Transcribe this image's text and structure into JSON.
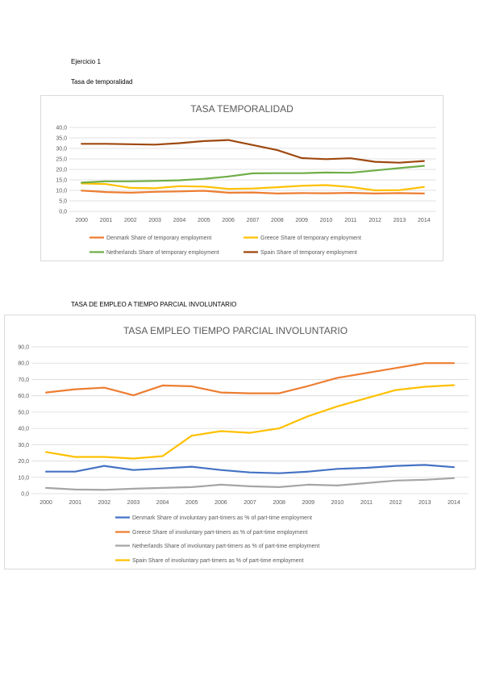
{
  "document": {
    "exercise_title": "Ejercicio 1",
    "section1_title": "Tasa de temporalidad",
    "section2_title": "TASA DE EMPLEO A TIEMPO PARCIAL INVOLUNTARIO"
  },
  "chart_data": [
    {
      "type": "line",
      "title": "TASA TEMPORALIDAD",
      "xlabel": "",
      "ylabel": "",
      "x": [
        "2000",
        "2001",
        "2002",
        "2003",
        "2004",
        "2005",
        "2006",
        "2007",
        "2008",
        "2009",
        "2010",
        "2011",
        "2012",
        "2013",
        "2014"
      ],
      "yticks": [
        "0,0",
        "5,0",
        "10,0",
        "15,0",
        "20,0",
        "25,0",
        "30,0",
        "35,0",
        "40,0"
      ],
      "ylim": [
        0,
        40
      ],
      "grid": true,
      "legend_position": "bottom",
      "series": [
        {
          "name": "Denmark Share of temporary employment",
          "color": "#ed7d31",
          "values": [
            9.9,
            9.2,
            8.9,
            9.3,
            9.5,
            9.8,
            8.9,
            9.0,
            8.5,
            8.7,
            8.6,
            8.8,
            8.5,
            8.7,
            8.5
          ]
        },
        {
          "name": "Greece Share of temporary employment",
          "color": "#ffc000",
          "values": [
            13.3,
            13.0,
            11.2,
            11.0,
            12.0,
            11.8,
            10.7,
            10.9,
            11.5,
            12.2,
            12.5,
            11.6,
            10.0,
            10.1,
            11.6
          ]
        },
        {
          "name": "Netherlands Share of temporary employment",
          "color": "#70ad47",
          "values": [
            13.7,
            14.3,
            14.3,
            14.5,
            14.8,
            15.5,
            16.6,
            18.1,
            18.2,
            18.2,
            18.5,
            18.4,
            19.5,
            20.6,
            21.7
          ]
        },
        {
          "name": "Spain Share of temporary employment",
          "color": "#9e480e",
          "values": [
            32.2,
            32.2,
            32.0,
            31.8,
            32.5,
            33.5,
            34.0,
            31.6,
            29.2,
            25.4,
            24.9,
            25.3,
            23.6,
            23.2,
            24.0
          ]
        }
      ]
    },
    {
      "type": "line",
      "title": "TASA EMPLEO TIEMPO PARCIAL INVOLUNTARIO",
      "xlabel": "",
      "ylabel": "",
      "x": [
        "2000",
        "2001",
        "2002",
        "2003",
        "2004",
        "2005",
        "2006",
        "2007",
        "2008",
        "2009",
        "2010",
        "2011",
        "2012",
        "2013",
        "2014"
      ],
      "yticks": [
        "0,0",
        "10,0",
        "20,0",
        "30,0",
        "40,0",
        "50,0",
        "60,0",
        "70,0",
        "80,0",
        "90,0"
      ],
      "ylim": [
        0,
        90
      ],
      "grid": true,
      "legend_position": "bottom",
      "series": [
        {
          "name": "Denmark Share of involuntary part-timers as % of part-time employment",
          "color": "#4472c4",
          "values": [
            13.5,
            13.5,
            17.0,
            14.5,
            15.5,
            16.5,
            14.5,
            13.0,
            12.5,
            13.5,
            15.2,
            15.8,
            17.0,
            17.6,
            16.2
          ]
        },
        {
          "name": "Greece Share of involuntary part-timers as % of part-time employment",
          "color": "#ed7d31",
          "values": [
            62.0,
            64.0,
            65.0,
            60.3,
            66.3,
            65.8,
            62.0,
            61.5,
            61.5,
            66.0,
            71.0,
            74.0,
            77.0,
            80.0,
            80.0
          ]
        },
        {
          "name": "Netherlands Share of involuntary part-timers as % of part-time employment",
          "color": "#a5a5a5",
          "values": [
            3.5,
            2.5,
            2.3,
            3.0,
            3.5,
            4.0,
            5.5,
            4.5,
            4.0,
            5.5,
            5.0,
            6.5,
            8.0,
            8.5,
            9.5
          ]
        },
        {
          "name": "Spain Share of involuntary part-timers as % of part-time employment",
          "color": "#ffc000",
          "values": [
            25.5,
            22.5,
            22.5,
            21.5,
            23.0,
            35.5,
            38.3,
            37.3,
            40.0,
            47.5,
            53.5,
            58.5,
            63.5,
            65.5,
            66.5
          ]
        }
      ]
    }
  ]
}
